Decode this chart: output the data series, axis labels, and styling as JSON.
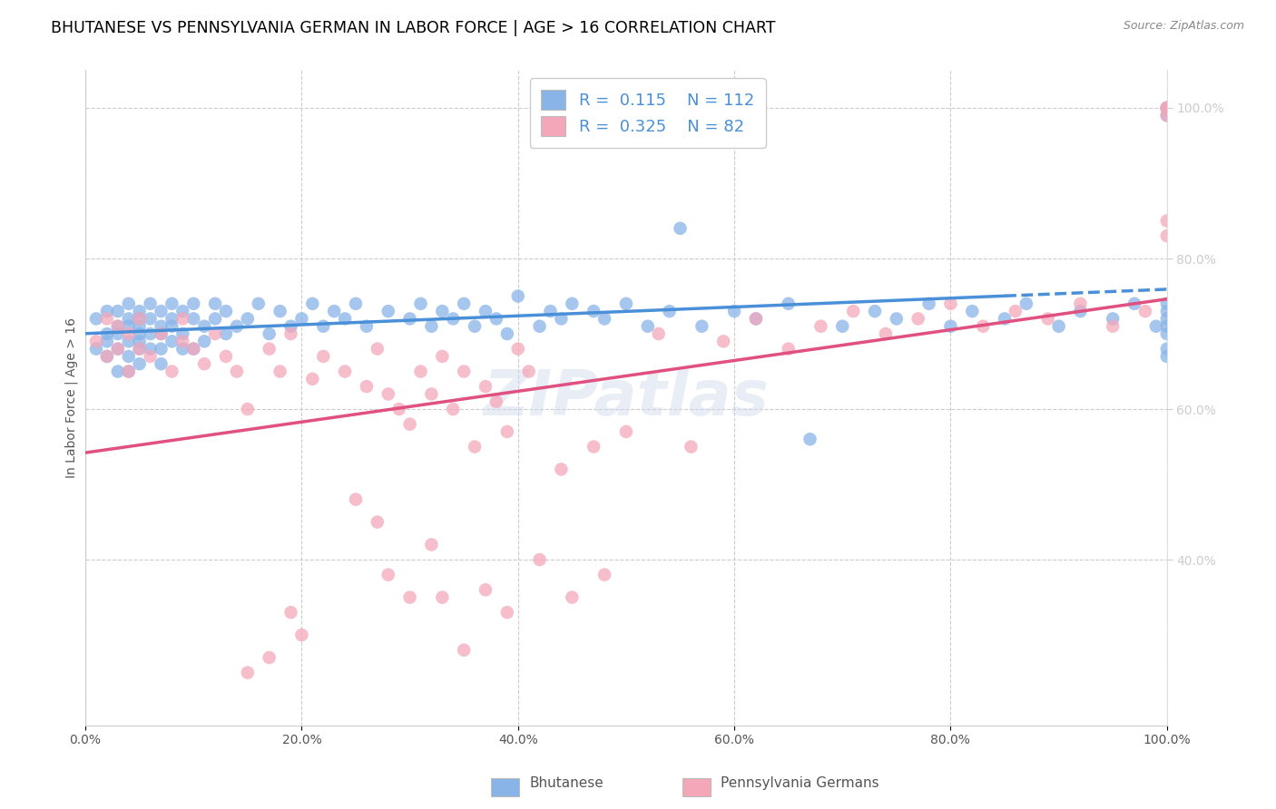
{
  "title": "BHUTANESE VS PENNSYLVANIA GERMAN IN LABOR FORCE | AGE > 16 CORRELATION CHART",
  "source": "Source: ZipAtlas.com",
  "ylabel": "In Labor Force | Age > 16",
  "x_tick_labels": [
    "0.0%",
    "20.0%",
    "40.0%",
    "60.0%",
    "80.0%",
    "100.0%"
  ],
  "x_tick_vals": [
    0.0,
    0.2,
    0.4,
    0.6,
    0.8,
    1.0
  ],
  "y_tick_labels": [
    "40.0%",
    "60.0%",
    "80.0%",
    "100.0%"
  ],
  "y_tick_vals": [
    0.4,
    0.6,
    0.8,
    1.0
  ],
  "blue_R": 0.115,
  "blue_N": 112,
  "pink_R": 0.325,
  "pink_N": 82,
  "blue_color": "#89b4e8",
  "pink_color": "#f4a7b9",
  "blue_line_color": "#4a90d9",
  "pink_line_color": "#e05080",
  "blue_label": "Bhutanese",
  "pink_label": "Pennsylvania Germans",
  "watermark": "ZIPatlas",
  "xlim": [
    0.0,
    1.0
  ],
  "ylim": [
    0.18,
    1.05
  ],
  "blue_x": [
    0.01,
    0.01,
    0.02,
    0.02,
    0.02,
    0.02,
    0.03,
    0.03,
    0.03,
    0.03,
    0.03,
    0.04,
    0.04,
    0.04,
    0.04,
    0.04,
    0.04,
    0.05,
    0.05,
    0.05,
    0.05,
    0.05,
    0.05,
    0.05,
    0.06,
    0.06,
    0.06,
    0.06,
    0.07,
    0.07,
    0.07,
    0.07,
    0.07,
    0.08,
    0.08,
    0.08,
    0.08,
    0.09,
    0.09,
    0.09,
    0.1,
    0.1,
    0.1,
    0.11,
    0.11,
    0.12,
    0.12,
    0.13,
    0.13,
    0.14,
    0.15,
    0.16,
    0.17,
    0.18,
    0.19,
    0.2,
    0.21,
    0.22,
    0.23,
    0.24,
    0.25,
    0.26,
    0.28,
    0.3,
    0.31,
    0.32,
    0.33,
    0.34,
    0.35,
    0.36,
    0.37,
    0.38,
    0.39,
    0.4,
    0.42,
    0.43,
    0.44,
    0.45,
    0.47,
    0.48,
    0.5,
    0.52,
    0.54,
    0.55,
    0.57,
    0.6,
    0.62,
    0.65,
    0.67,
    0.7,
    0.73,
    0.75,
    0.78,
    0.8,
    0.82,
    0.85,
    0.87,
    0.9,
    0.92,
    0.95,
    0.97,
    0.99,
    1.0,
    1.0,
    1.0,
    1.0,
    1.0,
    1.0,
    1.0,
    1.0,
    1.0,
    1.0
  ],
  "blue_y": [
    0.68,
    0.72,
    0.7,
    0.73,
    0.67,
    0.69,
    0.71,
    0.68,
    0.73,
    0.65,
    0.7,
    0.72,
    0.69,
    0.74,
    0.67,
    0.71,
    0.65,
    0.73,
    0.7,
    0.68,
    0.72,
    0.66,
    0.71,
    0.69,
    0.74,
    0.7,
    0.68,
    0.72,
    0.71,
    0.73,
    0.68,
    0.7,
    0.66,
    0.72,
    0.74,
    0.69,
    0.71,
    0.73,
    0.68,
    0.7,
    0.72,
    0.74,
    0.68,
    0.71,
    0.69,
    0.74,
    0.72,
    0.7,
    0.73,
    0.71,
    0.72,
    0.74,
    0.7,
    0.73,
    0.71,
    0.72,
    0.74,
    0.71,
    0.73,
    0.72,
    0.74,
    0.71,
    0.73,
    0.72,
    0.74,
    0.71,
    0.73,
    0.72,
    0.74,
    0.71,
    0.73,
    0.72,
    0.7,
    0.75,
    0.71,
    0.73,
    0.72,
    0.74,
    0.73,
    0.72,
    0.74,
    0.71,
    0.73,
    0.84,
    0.71,
    0.73,
    0.72,
    0.74,
    0.56,
    0.71,
    0.73,
    0.72,
    0.74,
    0.71,
    0.73,
    0.72,
    0.74,
    0.71,
    0.73,
    0.72,
    0.74,
    0.71,
    0.68,
    0.7,
    0.72,
    0.74,
    0.71,
    0.73,
    0.99,
    1.0,
    1.0,
    0.67
  ],
  "pink_x": [
    0.01,
    0.02,
    0.02,
    0.03,
    0.03,
    0.04,
    0.04,
    0.05,
    0.05,
    0.06,
    0.07,
    0.08,
    0.09,
    0.09,
    0.1,
    0.11,
    0.12,
    0.13,
    0.14,
    0.15,
    0.17,
    0.18,
    0.19,
    0.21,
    0.22,
    0.24,
    0.26,
    0.27,
    0.28,
    0.29,
    0.3,
    0.31,
    0.32,
    0.33,
    0.34,
    0.35,
    0.36,
    0.37,
    0.38,
    0.39,
    0.4,
    0.41,
    0.44,
    0.47,
    0.5,
    0.53,
    0.56,
    0.59,
    0.62,
    0.65,
    0.68,
    0.71,
    0.74,
    0.77,
    0.8,
    0.83,
    0.86,
    0.89,
    0.92,
    0.95,
    0.98,
    1.0,
    1.0,
    1.0,
    1.0,
    1.0,
    0.28,
    0.3,
    0.32,
    0.25,
    0.27,
    0.33,
    0.35,
    0.37,
    0.39,
    0.42,
    0.45,
    0.48,
    0.15,
    0.17,
    0.19,
    0.2
  ],
  "pink_y": [
    0.69,
    0.72,
    0.67,
    0.71,
    0.68,
    0.65,
    0.7,
    0.68,
    0.72,
    0.67,
    0.7,
    0.65,
    0.69,
    0.72,
    0.68,
    0.66,
    0.7,
    0.67,
    0.65,
    0.6,
    0.68,
    0.65,
    0.7,
    0.64,
    0.67,
    0.65,
    0.63,
    0.68,
    0.62,
    0.6,
    0.58,
    0.65,
    0.62,
    0.67,
    0.6,
    0.65,
    0.55,
    0.63,
    0.61,
    0.57,
    0.68,
    0.65,
    0.52,
    0.55,
    0.57,
    0.7,
    0.55,
    0.69,
    0.72,
    0.68,
    0.71,
    0.73,
    0.7,
    0.72,
    0.74,
    0.71,
    0.73,
    0.72,
    0.74,
    0.71,
    0.73,
    0.85,
    0.83,
    0.99,
    1.0,
    1.0,
    0.38,
    0.35,
    0.42,
    0.48,
    0.45,
    0.35,
    0.28,
    0.36,
    0.33,
    0.4,
    0.35,
    0.38,
    0.25,
    0.27,
    0.33,
    0.3
  ]
}
